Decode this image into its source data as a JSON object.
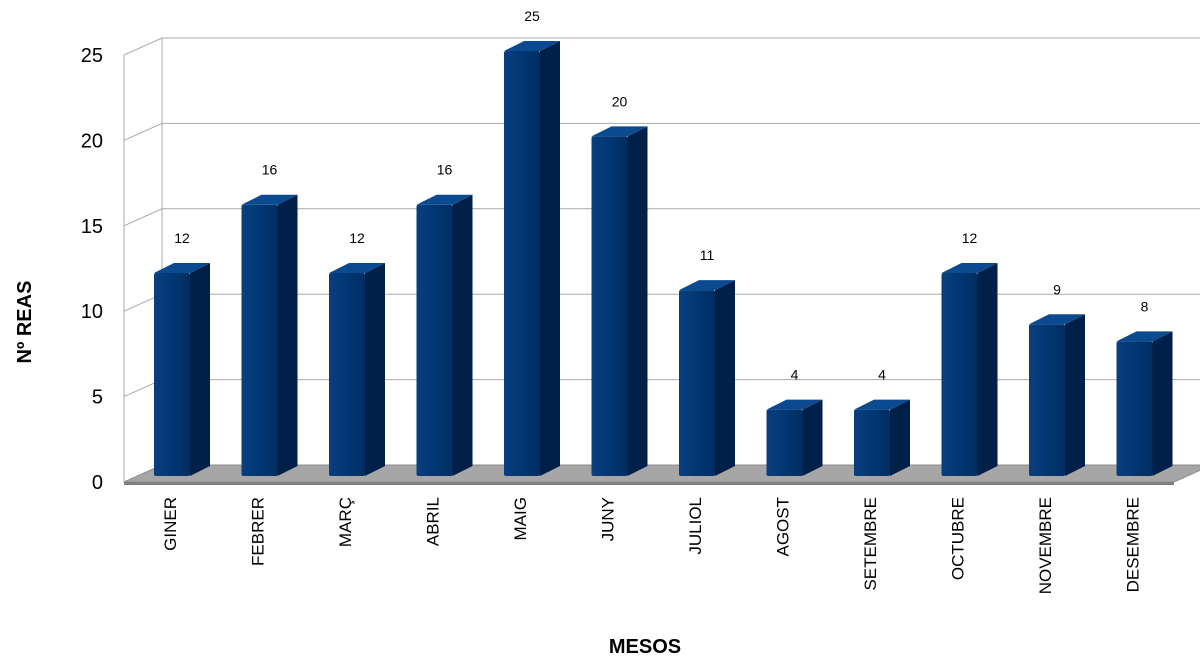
{
  "chart_data": {
    "type": "bar",
    "categories": [
      "GINER",
      "FEBRER",
      "MARÇ",
      "ABRIL",
      "MAIG",
      "JUNY",
      "JULIOL",
      "AGOST",
      "SETEMBRE",
      "OCTUBRE",
      "NOVEMBRE",
      "DESEMBRE"
    ],
    "values": [
      12,
      16,
      12,
      16,
      25,
      20,
      11,
      4,
      4,
      12,
      9,
      8
    ],
    "data_labels": [
      "12",
      "16",
      "12",
      "16",
      "25",
      "20",
      "11",
      "4",
      "4",
      "12",
      "9",
      "8"
    ],
    "xlabel": "MESOS",
    "ylabel": "Nº REAS",
    "ylim": [
      0,
      25
    ],
    "yticks": [
      "0",
      "5",
      "10",
      "15",
      "20",
      "25"
    ],
    "grid": true,
    "style": "3d-bar",
    "colors": {
      "bar_front": "#003773",
      "bar_side": "#00204a",
      "bar_top": "#0b4a8f",
      "floor": "#a6a6a6",
      "gridline": "#a9a9a9"
    }
  }
}
